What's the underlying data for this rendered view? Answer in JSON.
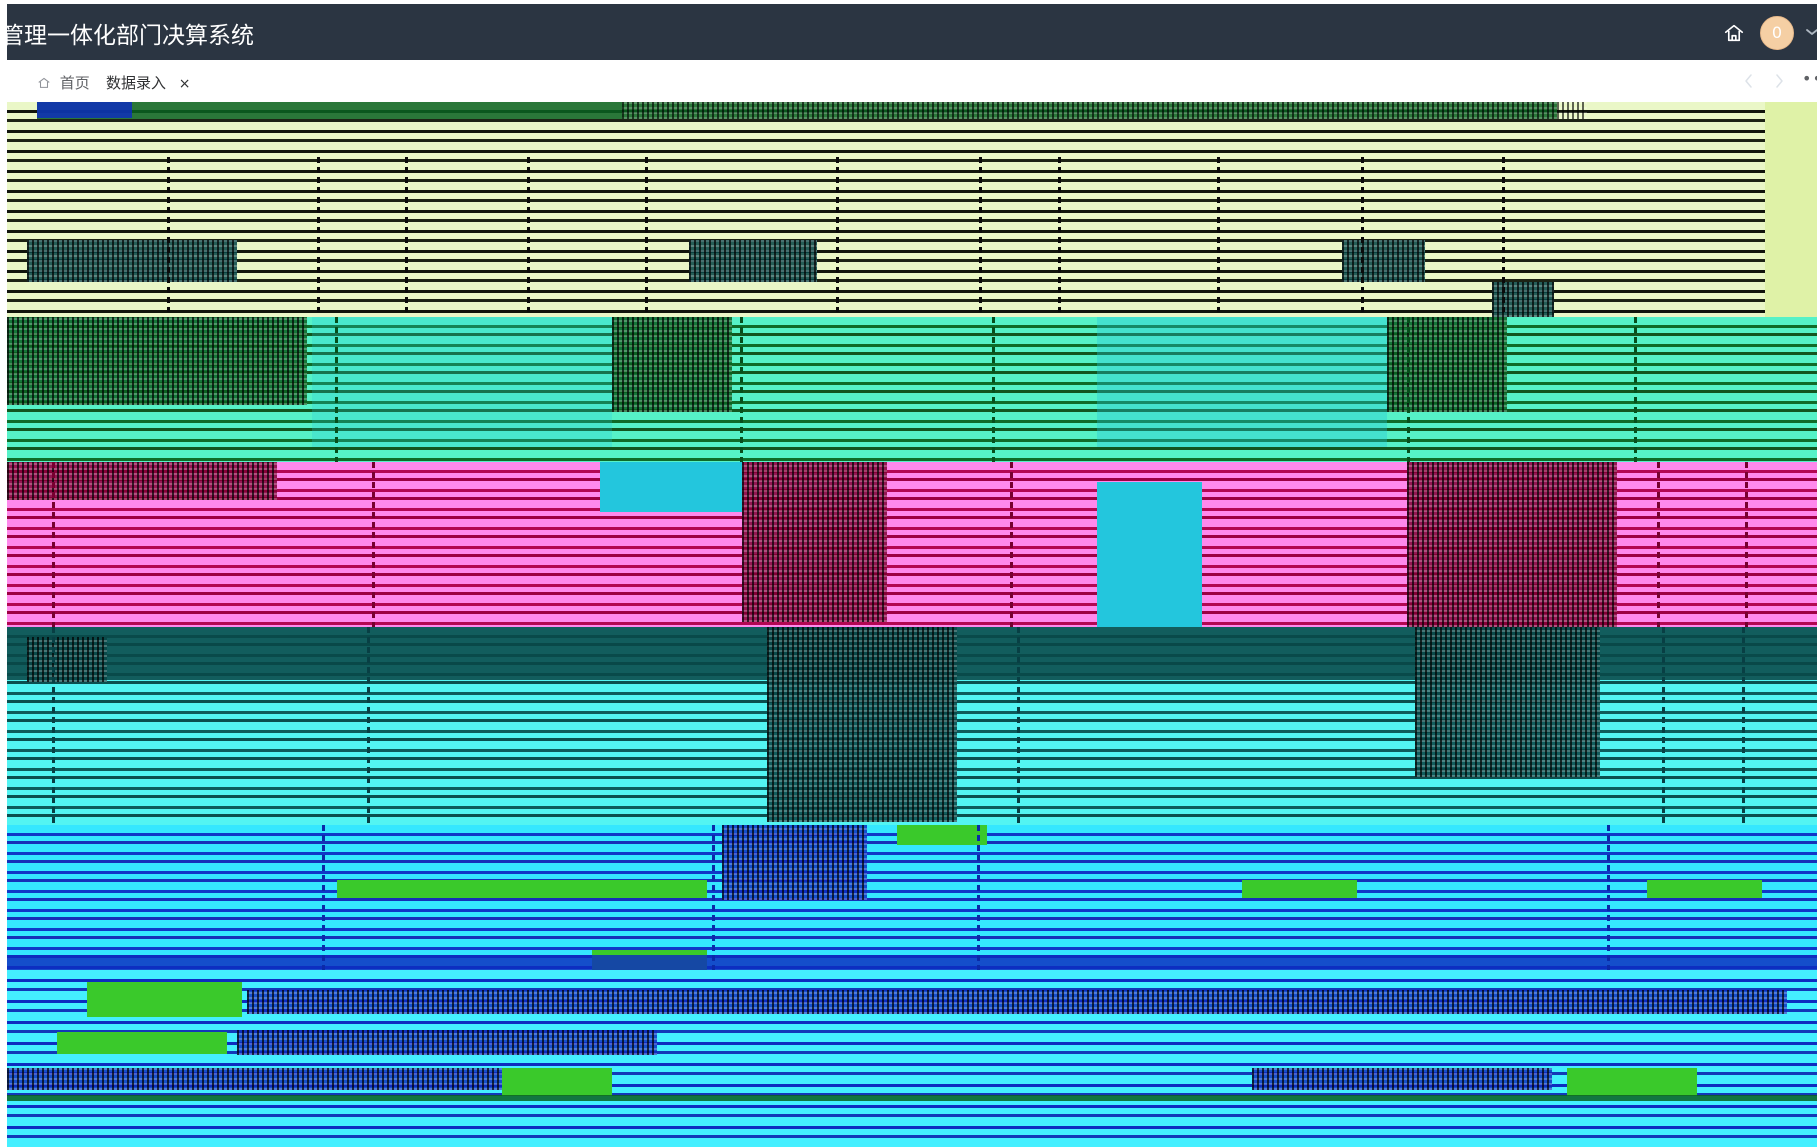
{
  "header": {
    "title": "管理一体化部门决算系统",
    "avatar_text": "0",
    "icons": {
      "home": "home-icon",
      "dropdown": "chevron-down-icon"
    }
  },
  "tabs": {
    "home_label": "首页",
    "active_label": "数据录入",
    "close_label": "×",
    "more_label": "•••"
  },
  "colors": {
    "header_bg": "#2b3542",
    "avatar_bg": "#f5cfa4",
    "content_band_1": "#eaf7c7",
    "content_band_2": "#56f2c7",
    "content_band_3": "#ff89ec",
    "content_band_4": "#53f4f2",
    "content_band_5": "#35e7ff"
  }
}
